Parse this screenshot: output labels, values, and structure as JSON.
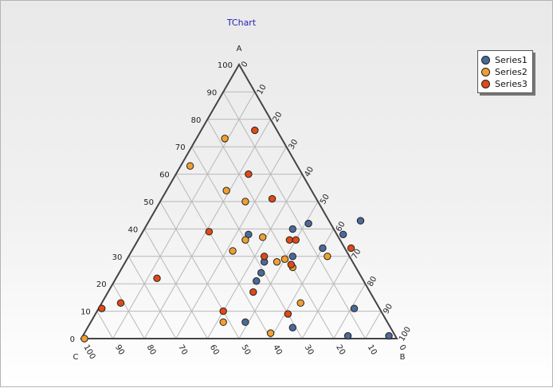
{
  "chart_data": {
    "type": "scatter",
    "subtype": "ternary",
    "title": "TChart",
    "axes": {
      "A": {
        "label": "A",
        "range": [
          0,
          100
        ]
      },
      "B": {
        "label": "B",
        "range": [
          0,
          100
        ]
      },
      "C": {
        "label": "C",
        "range": [
          0,
          100
        ]
      }
    },
    "a_ticks": [
      "0",
      "10",
      "20",
      "30",
      "40",
      "50",
      "60",
      "70",
      "80",
      "90",
      "100"
    ],
    "b_ticks": [
      "0",
      "10",
      "20",
      "30",
      "40",
      "50",
      "60",
      "70",
      "80",
      "90",
      "100"
    ],
    "c_ticks": [
      "0",
      "10",
      "20",
      "30",
      "40",
      "50",
      "60",
      "70",
      "80",
      "90",
      "100"
    ],
    "grid": true,
    "legend_position": "top-right",
    "series": [
      {
        "name": "Series1",
        "color": "#4a6a9a",
        "points": [
          {
            "a": 42,
            "b": 51
          },
          {
            "a": 40,
            "b": 47
          },
          {
            "a": 38,
            "b": 64
          },
          {
            "a": 43,
            "b": 67
          },
          {
            "a": 33,
            "b": 60
          },
          {
            "a": 30,
            "b": 52
          },
          {
            "a": 28,
            "b": 44
          },
          {
            "a": 38,
            "b": 34
          },
          {
            "a": 24,
            "b": 45
          },
          {
            "a": 21,
            "b": 45
          },
          {
            "a": 11,
            "b": 81
          },
          {
            "a": 6,
            "b": 49
          },
          {
            "a": 4,
            "b": 65
          },
          {
            "a": 1,
            "b": 84
          },
          {
            "a": 1,
            "b": 97
          }
        ]
      },
      {
        "name": "Series2",
        "color": "#f0a030",
        "points": [
          {
            "a": 73,
            "b": 9
          },
          {
            "a": 63,
            "b": 3
          },
          {
            "a": 54,
            "b": 19
          },
          {
            "a": 50,
            "b": 27
          },
          {
            "a": 37,
            "b": 39
          },
          {
            "a": 36,
            "b": 34
          },
          {
            "a": 32,
            "b": 32
          },
          {
            "a": 29,
            "b": 50
          },
          {
            "a": 30,
            "b": 63
          },
          {
            "a": 28,
            "b": 48
          },
          {
            "a": 26,
            "b": 54
          },
          {
            "a": 13,
            "b": 63
          },
          {
            "a": 6,
            "b": 42
          },
          {
            "a": 2,
            "b": 59
          },
          {
            "a": 0,
            "b": 1
          }
        ]
      },
      {
        "name": "Series3",
        "color": "#e04a14",
        "points": [
          {
            "a": 76,
            "b": 17
          },
          {
            "a": 60,
            "b": 23
          },
          {
            "a": 51,
            "b": 35
          },
          {
            "a": 39,
            "b": 21
          },
          {
            "a": 36,
            "b": 48
          },
          {
            "a": 36,
            "b": 50
          },
          {
            "a": 33,
            "b": 69
          },
          {
            "a": 30,
            "b": 43
          },
          {
            "a": 27,
            "b": 53
          },
          {
            "a": 22,
            "b": 13
          },
          {
            "a": 17,
            "b": 46
          },
          {
            "a": 10,
            "b": 40
          },
          {
            "a": 9,
            "b": 61
          },
          {
            "a": 13,
            "b": 6
          },
          {
            "a": 11,
            "b": 1
          }
        ]
      }
    ]
  }
}
